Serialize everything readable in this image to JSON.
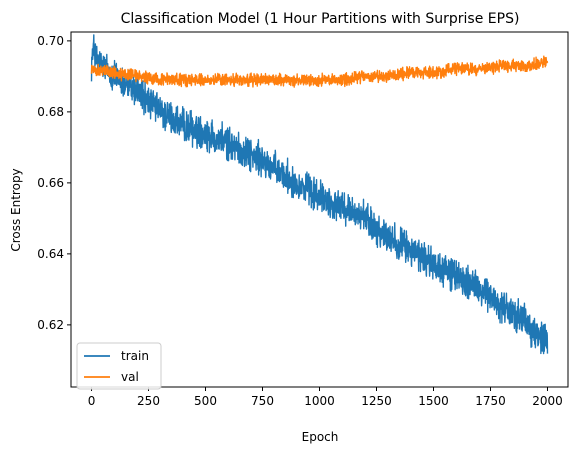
{
  "chart_data": {
    "type": "line",
    "title": "Classification Model (1 Hour Partitions with Surprise EPS)",
    "xlabel": "Epoch",
    "ylabel": "Cross Entropy",
    "xlim": [
      -90,
      2090
    ],
    "ylim": [
      0.6025,
      0.7025
    ],
    "xticks": [
      0,
      250,
      500,
      750,
      1000,
      1250,
      1500,
      1750,
      2000
    ],
    "yticks": [
      0.62,
      0.64,
      0.66,
      0.68,
      0.7
    ],
    "ytick_labels": [
      "0.62",
      "0.64",
      "0.66",
      "0.68",
      "0.70"
    ],
    "grid": false,
    "legend_position": "lower-left",
    "series": [
      {
        "name": "train",
        "color": "#1f77b4",
        "x": [
          0,
          10,
          25,
          50,
          100,
          200,
          250,
          300,
          400,
          500,
          600,
          700,
          750,
          800,
          900,
          1000,
          1100,
          1200,
          1250,
          1300,
          1400,
          1500,
          1600,
          1700,
          1750,
          1800,
          1900,
          1950,
          2000
        ],
        "y": [
          0.694,
          0.698,
          0.694,
          0.693,
          0.69,
          0.686,
          0.683,
          0.68,
          0.676,
          0.674,
          0.671,
          0.668,
          0.666,
          0.664,
          0.66,
          0.656,
          0.653,
          0.65,
          0.647,
          0.645,
          0.641,
          0.637,
          0.634,
          0.63,
          0.628,
          0.625,
          0.621,
          0.617,
          0.616
        ],
        "noise": 0.0035
      },
      {
        "name": "val",
        "color": "#ff7f0e",
        "x": [
          0,
          50,
          100,
          200,
          300,
          400,
          500,
          600,
          700,
          800,
          900,
          1000,
          1100,
          1200,
          1300,
          1400,
          1500,
          1600,
          1700,
          1800,
          1900,
          2000
        ],
        "y": [
          0.692,
          0.692,
          0.691,
          0.69,
          0.689,
          0.689,
          0.689,
          0.689,
          0.689,
          0.689,
          0.689,
          0.689,
          0.689,
          0.69,
          0.69,
          0.691,
          0.691,
          0.692,
          0.692,
          0.693,
          0.693,
          0.694
        ],
        "noise": 0.0013
      }
    ]
  }
}
